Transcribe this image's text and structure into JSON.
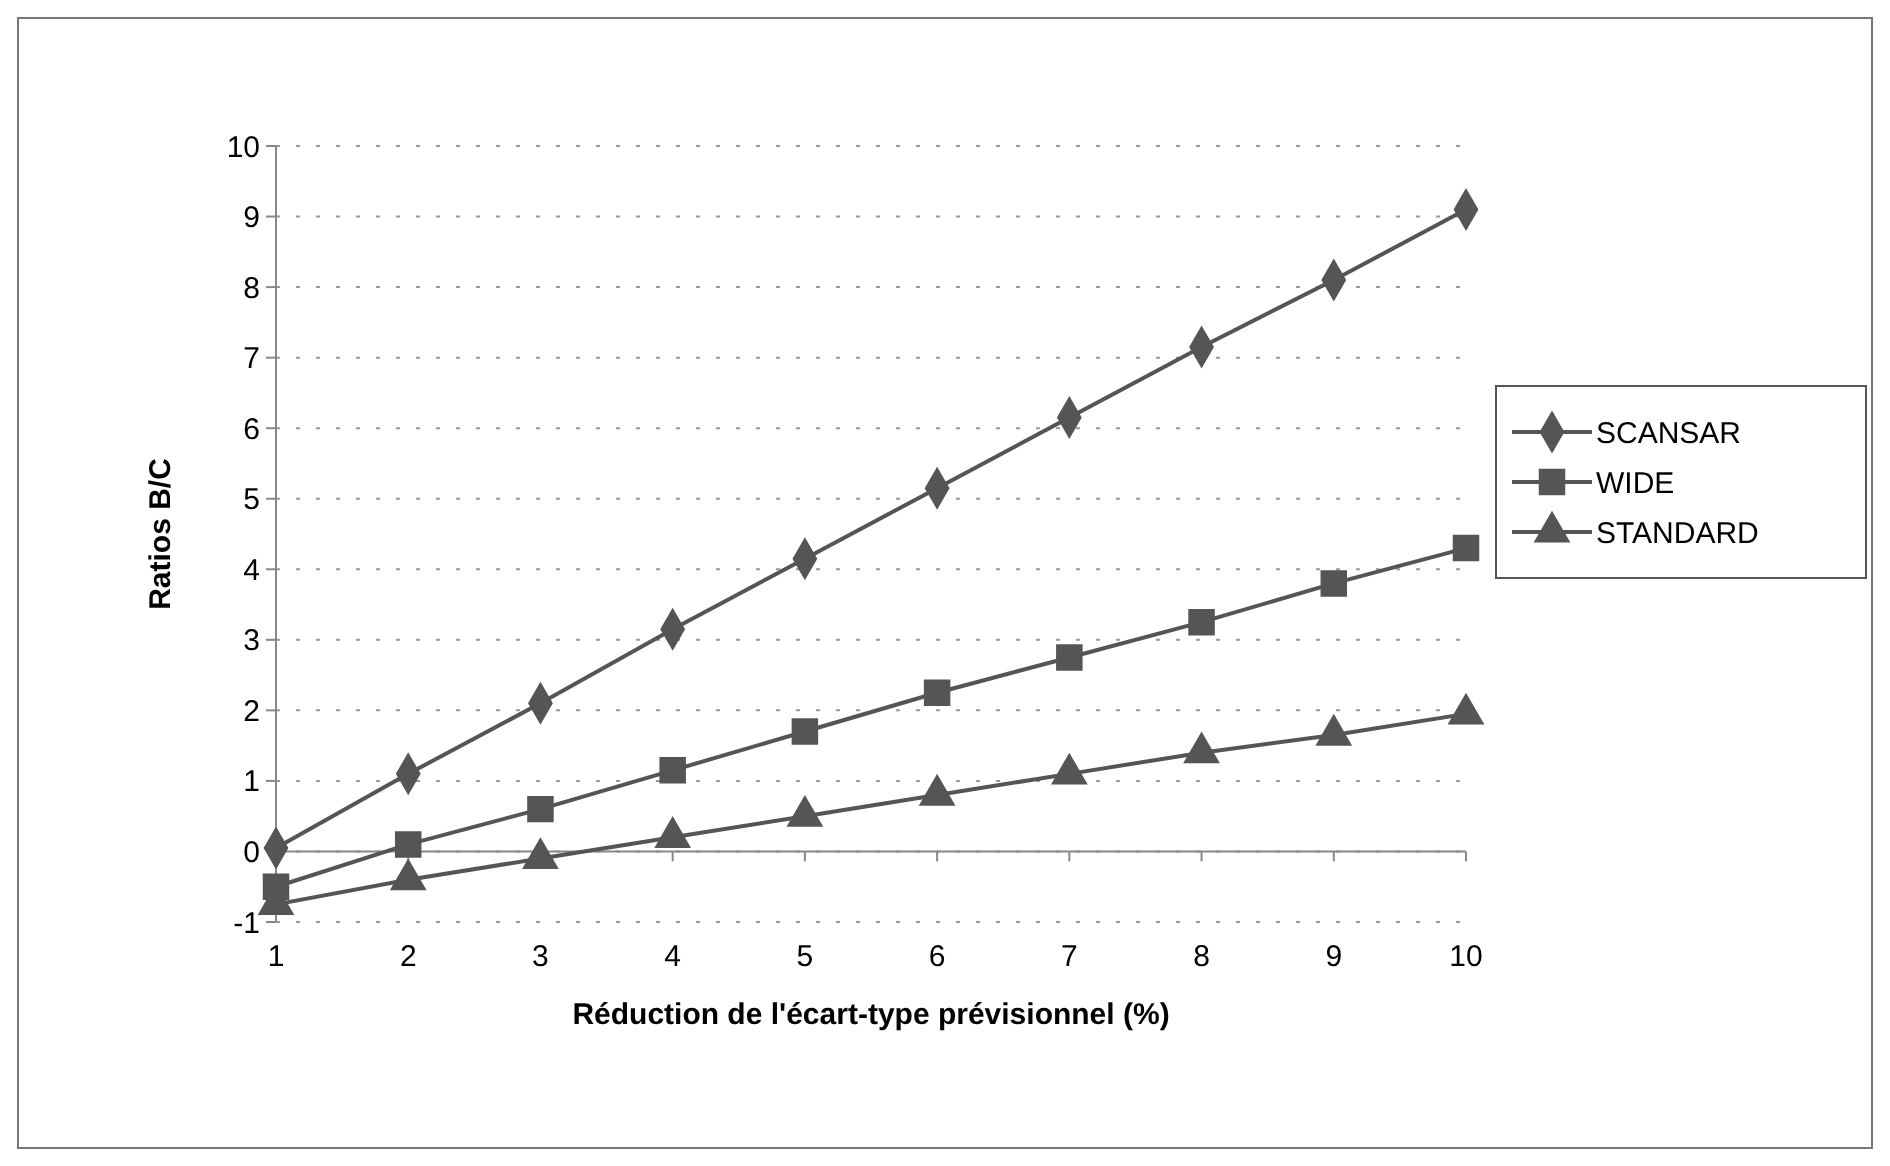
{
  "chart_data": {
    "type": "line",
    "xlabel": "Réduction de l'écart-type prévisionnel (%)",
    "ylabel": "Ratios B/C",
    "x": [
      1,
      2,
      3,
      4,
      5,
      6,
      7,
      8,
      9,
      10
    ],
    "xlim": [
      1,
      10
    ],
    "xticks": [
      1,
      2,
      3,
      4,
      5,
      6,
      7,
      8,
      9,
      10
    ],
    "ylim": [
      -1,
      10
    ],
    "yticks": [
      -1,
      0,
      1,
      2,
      3,
      4,
      5,
      6,
      7,
      8,
      9,
      10
    ],
    "grid": "y",
    "legend": "right",
    "series": [
      {
        "name": "SCANSAR",
        "color": "#555555",
        "marker": "diamond",
        "values": [
          0.05,
          1.1,
          2.1,
          3.15,
          4.15,
          5.15,
          6.15,
          7.15,
          8.1,
          9.1
        ]
      },
      {
        "name": "WIDE",
        "color": "#555555",
        "marker": "square",
        "values": [
          -0.5,
          0.1,
          0.6,
          1.15,
          1.7,
          2.25,
          2.75,
          3.25,
          3.8,
          4.3
        ]
      },
      {
        "name": "STANDARD",
        "color": "#555555",
        "marker": "triangle",
        "values": [
          -0.75,
          -0.4,
          -0.1,
          0.2,
          0.5,
          0.8,
          1.1,
          1.4,
          1.65,
          1.95
        ]
      }
    ]
  }
}
